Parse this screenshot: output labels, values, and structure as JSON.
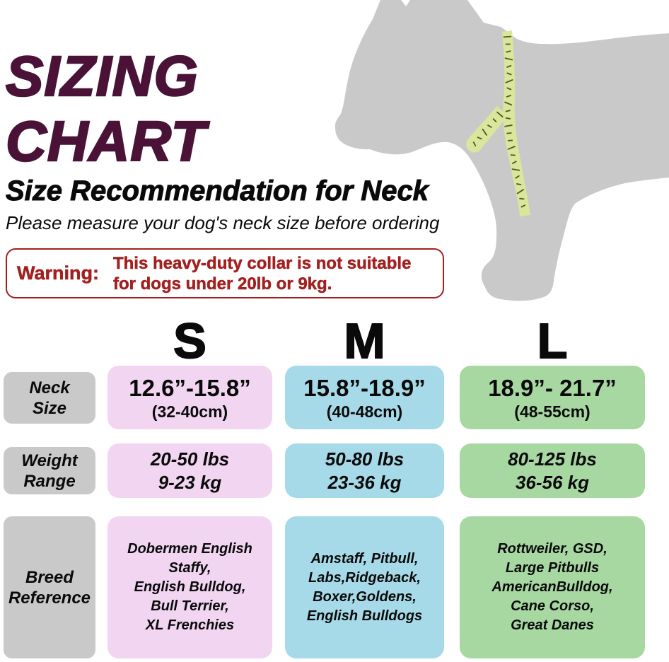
{
  "page": {
    "title": "SIZING\nCHART",
    "subtitle": "Size Recommendation for Neck",
    "note": "Please measure your dog's neck size before ordering"
  },
  "warning": {
    "label": "Warning:",
    "text": "This heavy-duty collar is not suitable\nfor dogs under 20lb or 9kg."
  },
  "colors": {
    "title": "#4b1237",
    "warning": "#a32020",
    "label_bg": "#c9c9c9",
    "size_s_bg": "#f1d5f1",
    "size_m_bg": "#a6dae8",
    "size_l_bg": "#a8d8a2",
    "dog": "#c9c9c9",
    "tape": "#d9e69c",
    "tape_tick": "#4a5a20"
  },
  "table": {
    "row_labels": {
      "neck": "Neck\nSize",
      "weight": "Weight\nRange",
      "breed": "Breed\nReference"
    },
    "columns": [
      {
        "label": "S",
        "neck_in": "12.6”-15.8”",
        "neck_cm": "(32-40cm)",
        "weight": "20-50 lbs\n9-23 kg",
        "breeds": "Dobermen English\nStaffy,\nEnglish Bulldog,\nBull Terrier,\nXL Frenchies"
      },
      {
        "label": "M",
        "neck_in": "15.8”-18.9”",
        "neck_cm": "(40-48cm)",
        "weight": "50-80 lbs\n23-36 kg",
        "breeds": "Amstaff, Pitbull,\nLabs,Ridgeback,\nBoxer,Goldens,\nEnglish Bulldogs"
      },
      {
        "label": "L",
        "neck_in": "18.9”- 21.7”",
        "neck_cm": "(48-55cm)",
        "weight": "80-125 lbs\n36-56 kg",
        "breeds": "Rottweiler, GSD,\nLarge Pitbulls\nAmericanBulldog,\nCane Corso,\nGreat Danes"
      }
    ]
  },
  "chart_data": {
    "type": "table",
    "title": "SIZING CHART — Size Recommendation for Neck",
    "columns": [
      "",
      "S",
      "M",
      "L"
    ],
    "rows": [
      [
        "Neck Size",
        "12.6”-15.8” (32-40cm)",
        "15.8”-18.9” (40-48cm)",
        "18.9”- 21.7” (48-55cm)"
      ],
      [
        "Weight Range",
        "20-50 lbs / 9-23 kg",
        "50-80 lbs / 23-36 kg",
        "80-125 lbs / 36-56 kg"
      ],
      [
        "Breed Reference",
        "Dobermen English Staffy, English Bulldog, Bull Terrier, XL Frenchies",
        "Amstaff, Pitbull, Labs, Ridgeback, Boxer, Goldens, English Bulldogs",
        "Rottweiler, GSD, Large Pitbulls, AmericanBulldog, Cane Corso, Great Danes"
      ]
    ]
  }
}
